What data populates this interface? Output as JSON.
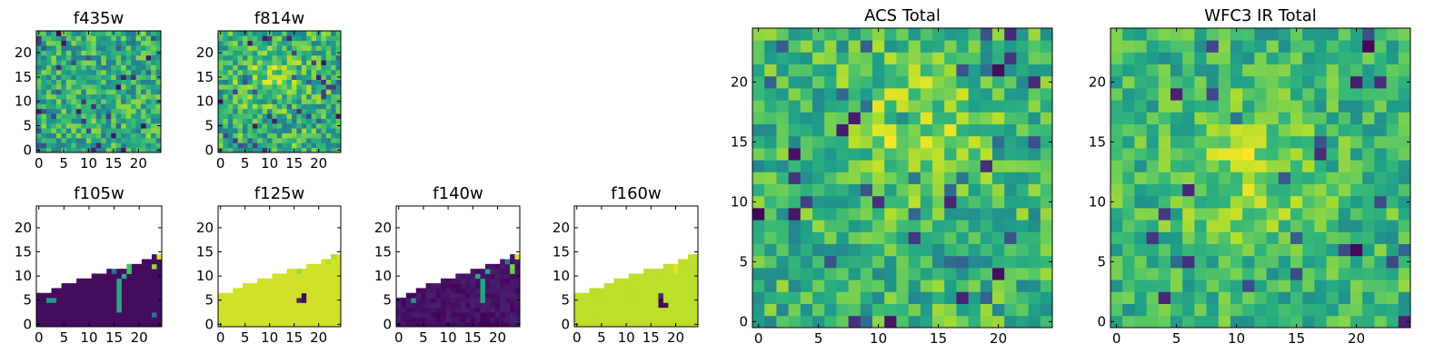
{
  "chart_data": [
    {
      "type": "heatmap",
      "title": "f435w",
      "colormap": "viridis",
      "xlim": [
        0,
        24
      ],
      "ylim": [
        0,
        24
      ],
      "xticks": [
        0,
        5,
        10,
        15,
        20
      ],
      "yticks": [
        0,
        5,
        10,
        15,
        20
      ],
      "origin": "lower",
      "pattern": "noise",
      "mean": 0.62,
      "spread": 0.22,
      "seed": 11
    },
    {
      "type": "heatmap",
      "title": "f814w",
      "colormap": "viridis",
      "xlim": [
        0,
        24
      ],
      "ylim": [
        0,
        24
      ],
      "xticks": [
        0,
        5,
        10,
        15,
        20
      ],
      "yticks": [
        0,
        5,
        10,
        15,
        20
      ],
      "origin": "lower",
      "pattern": "noise",
      "mean": 0.64,
      "spread": 0.22,
      "seed": 23,
      "bright_center": [
        10,
        15
      ]
    },
    {
      "type": "heatmap",
      "title": "f105w",
      "colormap": "viridis",
      "xlim": [
        0,
        24
      ],
      "ylim": [
        0,
        24
      ],
      "xticks": [
        0,
        5,
        10,
        15,
        20
      ],
      "yticks": [
        0,
        5,
        10,
        15,
        20
      ],
      "origin": "lower",
      "pattern": "wedge",
      "fill_value": 0.03,
      "blank_above": true,
      "boundary": [
        7,
        7,
        7,
        8,
        8,
        9,
        9,
        9,
        10,
        10,
        10,
        11,
        11,
        11,
        12,
        12,
        12,
        12,
        13,
        13,
        13,
        14,
        14,
        15,
        15
      ],
      "highlight_cells": [
        [
          2,
          5,
          0.55
        ],
        [
          3,
          5,
          0.55
        ],
        [
          16,
          3,
          0.6
        ],
        [
          16,
          4,
          0.6
        ],
        [
          16,
          5,
          0.6
        ],
        [
          16,
          6,
          0.6
        ],
        [
          16,
          7,
          0.6
        ],
        [
          16,
          8,
          0.6
        ],
        [
          16,
          9,
          0.6
        ],
        [
          17,
          10,
          0.6
        ],
        [
          18,
          12,
          0.7
        ],
        [
          18,
          11,
          0.7
        ],
        [
          23,
          12,
          0.85
        ],
        [
          24,
          14,
          0.95
        ],
        [
          23,
          2,
          0.4
        ],
        [
          15,
          11,
          0.35
        ]
      ]
    },
    {
      "type": "heatmap",
      "title": "f125w",
      "colormap": "viridis",
      "xlim": [
        0,
        24
      ],
      "ylim": [
        0,
        24
      ],
      "xticks": [
        0,
        5,
        10,
        15,
        20
      ],
      "yticks": [
        0,
        5,
        10,
        15,
        20
      ],
      "origin": "lower",
      "pattern": "wedge",
      "fill_value": 0.93,
      "blank_above": true,
      "boundary": [
        7,
        7,
        7,
        8,
        8,
        9,
        9,
        9,
        10,
        10,
        10,
        11,
        11,
        11,
        12,
        12,
        12,
        12,
        13,
        13,
        13,
        14,
        14,
        15,
        15
      ],
      "highlight_cells": [
        [
          17,
          5,
          0.02
        ],
        [
          17,
          6,
          0.02
        ],
        [
          16,
          5,
          0.1
        ],
        [
          16,
          11,
          0.85
        ],
        [
          22,
          13,
          0.88
        ],
        [
          23,
          14,
          0.88
        ]
      ]
    },
    {
      "type": "heatmap",
      "title": "f140w",
      "colormap": "viridis",
      "xlim": [
        0,
        24
      ],
      "ylim": [
        0,
        24
      ],
      "xticks": [
        0,
        5,
        10,
        15,
        20
      ],
      "yticks": [
        0,
        5,
        10,
        15,
        20
      ],
      "origin": "lower",
      "pattern": "wedge",
      "fill_value": 0.05,
      "blank_above": true,
      "texture": 0.08,
      "boundary": [
        6,
        6,
        7,
        7,
        8,
        8,
        9,
        9,
        9,
        10,
        10,
        10,
        11,
        11,
        11,
        12,
        12,
        12,
        13,
        13,
        13,
        14,
        14,
        15,
        15
      ],
      "highlight_cells": [
        [
          3,
          5,
          0.55
        ],
        [
          17,
          5,
          0.58
        ],
        [
          17,
          6,
          0.58
        ],
        [
          17,
          7,
          0.58
        ],
        [
          17,
          8,
          0.58
        ],
        [
          17,
          9,
          0.58
        ],
        [
          16,
          10,
          0.6
        ],
        [
          18,
          11,
          0.6
        ],
        [
          23,
          11,
          0.75
        ],
        [
          23,
          12,
          0.8
        ],
        [
          24,
          14,
          0.95
        ],
        [
          22,
          13,
          0.4
        ]
      ]
    },
    {
      "type": "heatmap",
      "title": "f160w",
      "colormap": "viridis",
      "xlim": [
        0,
        24
      ],
      "ylim": [
        0,
        24
      ],
      "xticks": [
        0,
        5,
        10,
        15,
        20
      ],
      "yticks": [
        0,
        5,
        10,
        15,
        20
      ],
      "origin": "lower",
      "pattern": "wedge",
      "fill_value": 0.9,
      "blank_above": true,
      "boundary": [
        7,
        7,
        7,
        8,
        8,
        8,
        9,
        9,
        10,
        10,
        10,
        11,
        11,
        11,
        12,
        12,
        12,
        12,
        13,
        13,
        13,
        14,
        14,
        15,
        15
      ],
      "highlight_cells": [
        [
          17,
          4,
          0.02
        ],
        [
          17,
          5,
          0.02
        ],
        [
          18,
          4,
          0.02
        ],
        [
          17,
          6,
          0.12
        ],
        [
          20,
          11,
          0.95
        ],
        [
          20,
          12,
          0.95
        ]
      ]
    },
    {
      "type": "heatmap",
      "title": "ACS Total",
      "colormap": "viridis",
      "xlim": [
        0,
        24
      ],
      "ylim": [
        0,
        24
      ],
      "xticks": [
        0,
        5,
        10,
        15,
        20
      ],
      "yticks": [
        0,
        5,
        10,
        15,
        20
      ],
      "origin": "lower",
      "pattern": "noise",
      "mean": 0.66,
      "spread": 0.2,
      "seed": 47,
      "bright_center": [
        13,
        16
      ]
    },
    {
      "type": "heatmap",
      "title": "WFC3 IR Total",
      "colormap": "viridis",
      "xlim": [
        0,
        24
      ],
      "ylim": [
        0,
        24
      ],
      "xticks": [
        0,
        5,
        10,
        15,
        20
      ],
      "yticks": [
        0,
        5,
        10,
        15,
        20
      ],
      "origin": "lower",
      "pattern": "noise",
      "mean": 0.66,
      "spread": 0.18,
      "seed": 89,
      "bright_center": [
        11,
        13
      ]
    }
  ]
}
